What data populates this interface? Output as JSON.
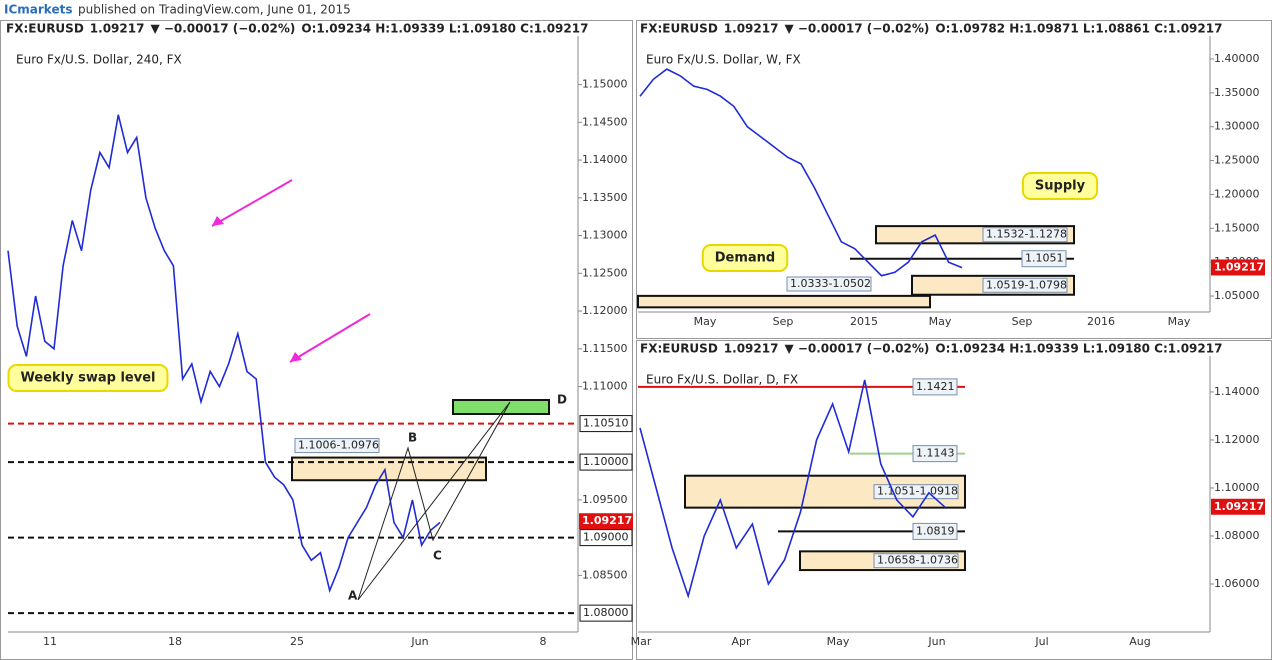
{
  "publisher": {
    "brand": "ICmarkets",
    "text": "published on TradingView.com, June 01, 2015"
  },
  "chart_data": [
    {
      "type": "line",
      "color": "#1f2bd6",
      "header": {
        "symbol": "FX:EURUSD",
        "last": "1.09217",
        "change": "▼ −0.00017 (−0.02%)",
        "ohlc": "O:1.09234 H:1.09339 L:1.09180 C:1.09217"
      },
      "title": "Euro Fx/U.S. Dollar, 240, FX",
      "ylim": [
        1.0775,
        1.1559
      ],
      "yticks": [
        {
          "value": 1.15,
          "label": "1.15000"
        },
        {
          "value": 1.145,
          "label": "1.14500"
        },
        {
          "value": 1.14,
          "label": "1.14000"
        },
        {
          "value": 1.135,
          "label": "1.13500"
        },
        {
          "value": 1.13,
          "label": "1.13000"
        },
        {
          "value": 1.125,
          "label": "1.12500"
        },
        {
          "value": 1.12,
          "label": "1.12000"
        },
        {
          "value": 1.115,
          "label": "1.11500"
        },
        {
          "value": 1.11,
          "label": "1.11000"
        },
        {
          "value": 1.095,
          "label": "1.09500"
        },
        {
          "value": 1.085,
          "label": "1.08500"
        }
      ],
      "xlabels": [
        "11",
        "18",
        "25",
        "Jun",
        "8"
      ],
      "values": [
        1.128,
        1.118,
        1.114,
        1.122,
        1.116,
        1.115,
        1.126,
        1.132,
        1.128,
        1.136,
        1.141,
        1.139,
        1.146,
        1.141,
        1.143,
        1.135,
        1.131,
        1.128,
        1.126,
        1.111,
        1.113,
        1.108,
        1.112,
        1.11,
        1.113,
        1.117,
        1.112,
        1.111,
        1.1,
        1.098,
        1.097,
        1.095,
        1.089,
        1.087,
        1.088,
        1.083,
        1.086,
        1.09,
        1.092,
        1.094,
        1.097,
        1.099,
        1.092,
        1.09,
        1.095,
        1.089,
        1.091,
        1.092
      ],
      "levels": [
        {
          "value": 1.1051,
          "label": "1.10510",
          "color": "#e01010"
        },
        {
          "value": 1.1,
          "label": "1.10000",
          "color": "#111"
        },
        {
          "value": 1.09,
          "label": "1.09000",
          "color": "#111"
        },
        {
          "value": 1.08,
          "label": "1.08000",
          "color": "#111"
        }
      ],
      "price": {
        "value": 1.09217,
        "label": "1.09217"
      },
      "zones": [
        {
          "label": "1.1006-1.0976",
          "top": 1.1006,
          "bottom": 1.0976
        }
      ],
      "annotations": [
        "Weekly swap level",
        "A",
        "B",
        "C",
        "D"
      ]
    },
    {
      "type": "line",
      "color": "#1f2bd6",
      "header": {
        "symbol": "FX:EURUSD",
        "last": "1.09217",
        "change": "▼ −0.00017 (−0.02%)",
        "ohlc": "O:1.09782 H:1.09871 L:1.08861 C:1.09217"
      },
      "title": "Euro Fx/U.S. Dollar, W, FX",
      "ylim": [
        1.0264,
        1.428
      ],
      "yticks": [
        {
          "value": 1.4,
          "label": "1.40000"
        },
        {
          "value": 1.35,
          "label": "1.35000"
        },
        {
          "value": 1.3,
          "label": "1.30000"
        },
        {
          "value": 1.25,
          "label": "1.25000"
        },
        {
          "value": 1.2,
          "label": "1.20000"
        },
        {
          "value": 1.15,
          "label": "1.15000"
        },
        {
          "value": 1.1,
          "label": "1.10000"
        },
        {
          "value": 1.05,
          "label": "1.05000"
        }
      ],
      "xlabels": [
        "May",
        "Sep",
        "2015",
        "May",
        "Sep",
        "2016",
        "May"
      ],
      "values": [
        1.345,
        1.37,
        1.385,
        1.375,
        1.36,
        1.355,
        1.345,
        1.33,
        1.3,
        1.285,
        1.27,
        1.255,
        1.245,
        1.21,
        1.17,
        1.13,
        1.12,
        1.1,
        1.08,
        1.085,
        1.1,
        1.13,
        1.14,
        1.1,
        1.092
      ],
      "levels": [
        {
          "value": 1.1051,
          "label": "1.1051",
          "color": "#111"
        }
      ],
      "price": {
        "value": 1.09217,
        "label": "1.09217"
      },
      "zones": [
        {
          "label": "1.1532-1.1278",
          "top": 1.1532,
          "bottom": 1.1278
        },
        {
          "label": "1.0519-1.0798",
          "top": 1.0798,
          "bottom": 1.0519
        },
        {
          "label": "1.0333-1.0502",
          "top": 1.0502,
          "bottom": 1.0333
        }
      ],
      "annotations": [
        "Supply",
        "Demand"
      ]
    },
    {
      "type": "line",
      "color": "#1f2bd6",
      "header": {
        "symbol": "FX:EURUSD",
        "last": "1.09217",
        "change": "▼ −0.00017 (−0.02%)",
        "ohlc": "O:1.09234 H:1.09339 L:1.09180 C:1.09217"
      },
      "title": "Euro Fx/U.S. Dollar, D, FX",
      "ylim": [
        1.04,
        1.1533
      ],
      "yticks": [
        {
          "value": 1.14,
          "label": "1.14000"
        },
        {
          "value": 1.12,
          "label": "1.12000"
        },
        {
          "value": 1.1,
          "label": "1.10000"
        },
        {
          "value": 1.08,
          "label": "1.08000"
        },
        {
          "value": 1.06,
          "label": "1.06000"
        }
      ],
      "xlabels": [
        "Mar",
        "Apr",
        "May",
        "Jun",
        "Jul",
        "Aug"
      ],
      "values": [
        1.125,
        1.1,
        1.075,
        1.055,
        1.08,
        1.095,
        1.075,
        1.085,
        1.06,
        1.07,
        1.09,
        1.12,
        1.135,
        1.115,
        1.145,
        1.11,
        1.095,
        1.088,
        1.098,
        1.092
      ],
      "levels": [
        {
          "value": 1.1421,
          "label": "1.1421",
          "color": "#e01010"
        },
        {
          "value": 1.1143,
          "label": "1.1143",
          "color": "#9fd18c"
        },
        {
          "value": 1.0819,
          "label": "1.0819",
          "color": "#111"
        }
      ],
      "price": {
        "value": 1.09217,
        "label": "1.09217"
      },
      "zones": [
        {
          "label": "1.1051-1.0918",
          "top": 1.1051,
          "bottom": 1.0918
        },
        {
          "label": "1.0658-1.0736",
          "top": 1.0736,
          "bottom": 1.0658
        }
      ],
      "annotations": []
    }
  ]
}
